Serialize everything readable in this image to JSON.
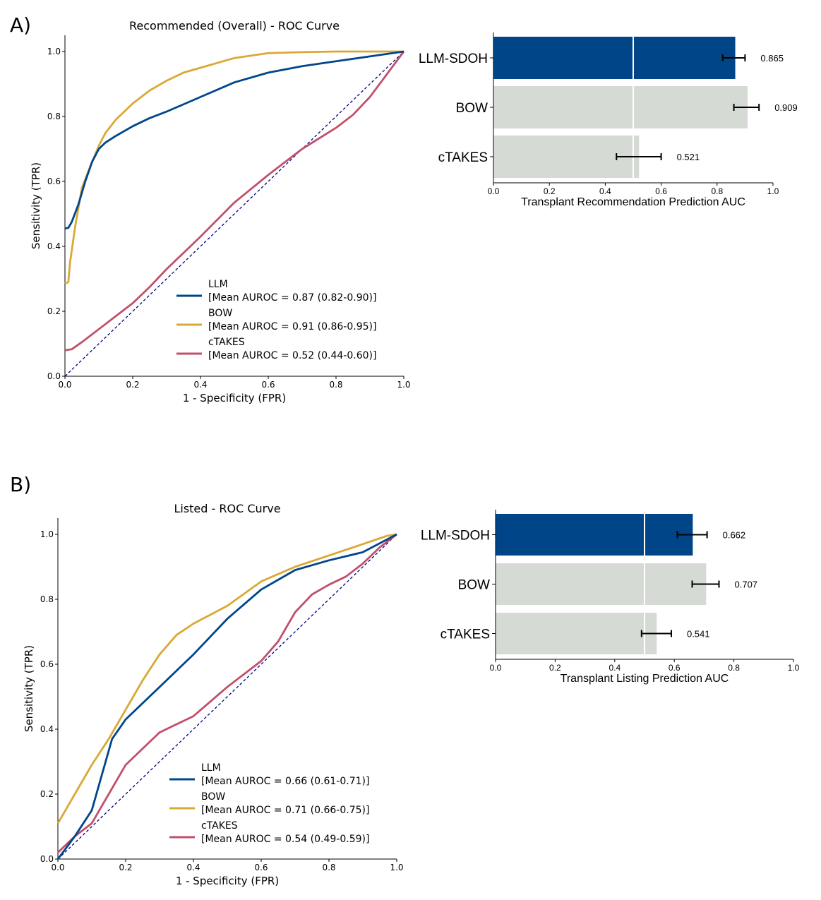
{
  "panels": [
    {
      "label": "A)",
      "roc": {
        "type": "line",
        "title": "Recommended (Overall) - ROC Curve",
        "xlabel": "1 - Specificity (FPR)",
        "ylabel": "Sensitivity (TPR)",
        "xlim": [
          0,
          1
        ],
        "ylim": [
          0,
          1.05
        ],
        "xticks": [
          "0.0",
          "0.2",
          "0.4",
          "0.6",
          "0.8",
          "1.0"
        ],
        "yticks": [
          "0.0",
          "0.2",
          "0.4",
          "0.6",
          "0.8",
          "1.0"
        ],
        "legend_position": "lower-right",
        "series": [
          {
            "name": "LLM",
            "auc_label": "[Mean AUROC = 0.87 (0.82-0.90)]",
            "color": "#00468b",
            "x": [
              0,
              0.01,
              0.02,
              0.04,
              0.06,
              0.08,
              0.1,
              0.12,
              0.15,
              0.2,
              0.25,
              0.3,
              0.4,
              0.5,
              0.6,
              0.7,
              0.8,
              0.9,
              1.0
            ],
            "y": [
              0.455,
              0.457,
              0.475,
              0.53,
              0.6,
              0.66,
              0.7,
              0.72,
              0.74,
              0.77,
              0.795,
              0.815,
              0.86,
              0.905,
              0.935,
              0.955,
              0.97,
              0.985,
              1.0
            ]
          },
          {
            "name": "BOW",
            "auc_label": "[Mean AUROC = 0.91 (0.86-0.95)]",
            "color": "#d9a935",
            "x": [
              0,
              0.01,
              0.015,
              0.03,
              0.05,
              0.08,
              0.1,
              0.12,
              0.15,
              0.2,
              0.25,
              0.3,
              0.35,
              0.4,
              0.5,
              0.6,
              0.7,
              0.8,
              1.0
            ],
            "y": [
              0.285,
              0.29,
              0.35,
              0.46,
              0.58,
              0.66,
              0.71,
              0.75,
              0.79,
              0.84,
              0.88,
              0.91,
              0.935,
              0.95,
              0.98,
              0.995,
              0.998,
              1.0,
              1.0
            ]
          },
          {
            "name": "cTAKES",
            "auc_label": "[Mean AUROC = 0.52 (0.44-0.60)]",
            "color": "#c0506a",
            "x": [
              0,
              0.02,
              0.05,
              0.1,
              0.15,
              0.2,
              0.25,
              0.3,
              0.35,
              0.4,
              0.5,
              0.6,
              0.7,
              0.8,
              0.85,
              0.9,
              0.95,
              1.0
            ],
            "y": [
              0.08,
              0.083,
              0.105,
              0.145,
              0.185,
              0.225,
              0.275,
              0.33,
              0.38,
              0.43,
              0.535,
              0.62,
              0.7,
              0.765,
              0.805,
              0.86,
              0.93,
              1.0
            ]
          },
          {
            "name": "chance",
            "auc_label": "",
            "color": "#000080",
            "x": [
              0,
              1
            ],
            "y": [
              0,
              1
            ]
          }
        ]
      },
      "bars": {
        "type": "bar",
        "xlabel": "Transplant Recommendation Prediction AUC",
        "xlim": [
          0,
          1
        ],
        "xticks": [
          "0.0",
          "0.2",
          "0.4",
          "0.6",
          "0.8",
          "1.0"
        ],
        "reference_line": 0.5,
        "categories": [
          "LLM-SDOH",
          "BOW",
          "cTAKES"
        ],
        "values": [
          0.865,
          0.909,
          0.521
        ],
        "value_labels": [
          "0.865",
          "0.909",
          "0.521"
        ],
        "ci_low": [
          0.82,
          0.86,
          0.44
        ],
        "ci_high": [
          0.9,
          0.95,
          0.6
        ],
        "colors": [
          "#004587",
          "#d5dbd4",
          "#d5dbd4"
        ]
      }
    },
    {
      "label": "B)",
      "roc": {
        "type": "line",
        "title": "Listed - ROC Curve",
        "xlabel": "1 - Specificity (FPR)",
        "ylabel": "Sensitivity (TPR)",
        "xlim": [
          0,
          1
        ],
        "ylim": [
          0,
          1.05
        ],
        "xticks": [
          "0.0",
          "0.2",
          "0.4",
          "0.6",
          "0.8",
          "1.0"
        ],
        "yticks": [
          "0.0",
          "0.2",
          "0.4",
          "0.6",
          "0.8",
          "1.0"
        ],
        "legend_position": "lower-right",
        "series": [
          {
            "name": "LLM",
            "auc_label": "[Mean AUROC = 0.66 (0.61-0.71)]",
            "color": "#00468b",
            "x": [
              0,
              0.05,
              0.1,
              0.13,
              0.16,
              0.2,
              0.3,
              0.4,
              0.5,
              0.6,
              0.7,
              0.8,
              0.9,
              1.0
            ],
            "y": [
              0.0,
              0.07,
              0.15,
              0.26,
              0.37,
              0.43,
              0.53,
              0.63,
              0.74,
              0.83,
              0.89,
              0.92,
              0.945,
              1.0
            ]
          },
          {
            "name": "BOW",
            "auc_label": "[Mean AUROC = 0.71 (0.66-0.75)]",
            "color": "#d9a935",
            "x": [
              0,
              0.05,
              0.1,
              0.15,
              0.2,
              0.25,
              0.3,
              0.35,
              0.4,
              0.5,
              0.6,
              0.7,
              0.8,
              0.9,
              0.97,
              1.0
            ],
            "y": [
              0.11,
              0.2,
              0.29,
              0.37,
              0.46,
              0.55,
              0.63,
              0.69,
              0.725,
              0.78,
              0.855,
              0.9,
              0.935,
              0.97,
              0.995,
              1.0
            ]
          },
          {
            "name": "cTAKES",
            "auc_label": "[Mean AUROC = 0.54 (0.49-0.59)]",
            "color": "#c0506a",
            "x": [
              0,
              0.05,
              0.1,
              0.15,
              0.2,
              0.3,
              0.4,
              0.5,
              0.6,
              0.65,
              0.7,
              0.75,
              0.8,
              0.85,
              0.9,
              0.95,
              1.0
            ],
            "y": [
              0.02,
              0.07,
              0.11,
              0.2,
              0.29,
              0.39,
              0.44,
              0.53,
              0.61,
              0.67,
              0.76,
              0.815,
              0.845,
              0.87,
              0.91,
              0.96,
              1.0
            ]
          },
          {
            "name": "chance",
            "auc_label": "",
            "color": "#000080",
            "x": [
              0,
              1
            ],
            "y": [
              0,
              1
            ]
          }
        ]
      },
      "bars": {
        "type": "bar",
        "xlabel": "Transplant Listing Prediction AUC",
        "xlim": [
          0,
          1
        ],
        "xticks": [
          "0.0",
          "0.2",
          "0.4",
          "0.6",
          "0.8",
          "1.0"
        ],
        "reference_line": 0.5,
        "categories": [
          "LLM-SDOH",
          "BOW",
          "cTAKES"
        ],
        "values": [
          0.662,
          0.707,
          0.541
        ],
        "value_labels": [
          "0.662",
          "0.707",
          "0.541"
        ],
        "ci_low": [
          0.61,
          0.66,
          0.49
        ],
        "ci_high": [
          0.71,
          0.75,
          0.59
        ],
        "colors": [
          "#004587",
          "#d5dbd4",
          "#d5dbd4"
        ]
      }
    }
  ],
  "chart_data": [
    {
      "type": "line",
      "title": "Recommended (Overall) - ROC Curve",
      "xlabel": "1 - Specificity (FPR)",
      "ylabel": "Sensitivity (TPR)",
      "series": [
        {
          "name": "LLM",
          "auroc": 0.87,
          "ci": [
            0.82,
            0.9
          ]
        },
        {
          "name": "BOW",
          "auroc": 0.91,
          "ci": [
            0.86,
            0.95
          ]
        },
        {
          "name": "cTAKES",
          "auroc": 0.52,
          "ci": [
            0.44,
            0.6
          ]
        }
      ]
    },
    {
      "type": "bar",
      "title": "",
      "xlabel": "Transplant Recommendation Prediction AUC",
      "categories": [
        "LLM-SDOH",
        "BOW",
        "cTAKES"
      ],
      "values": [
        0.865,
        0.909,
        0.521
      ]
    },
    {
      "type": "line",
      "title": "Listed - ROC Curve",
      "xlabel": "1 - Specificity (FPR)",
      "ylabel": "Sensitivity (TPR)",
      "series": [
        {
          "name": "LLM",
          "auroc": 0.66,
          "ci": [
            0.61,
            0.71
          ]
        },
        {
          "name": "BOW",
          "auroc": 0.71,
          "ci": [
            0.66,
            0.75
          ]
        },
        {
          "name": "cTAKES",
          "auroc": 0.54,
          "ci": [
            0.49,
            0.59
          ]
        }
      ]
    },
    {
      "type": "bar",
      "title": "",
      "xlabel": "Transplant Listing Prediction AUC",
      "categories": [
        "LLM-SDOH",
        "BOW",
        "cTAKES"
      ],
      "values": [
        0.662,
        0.707,
        0.541
      ]
    }
  ]
}
